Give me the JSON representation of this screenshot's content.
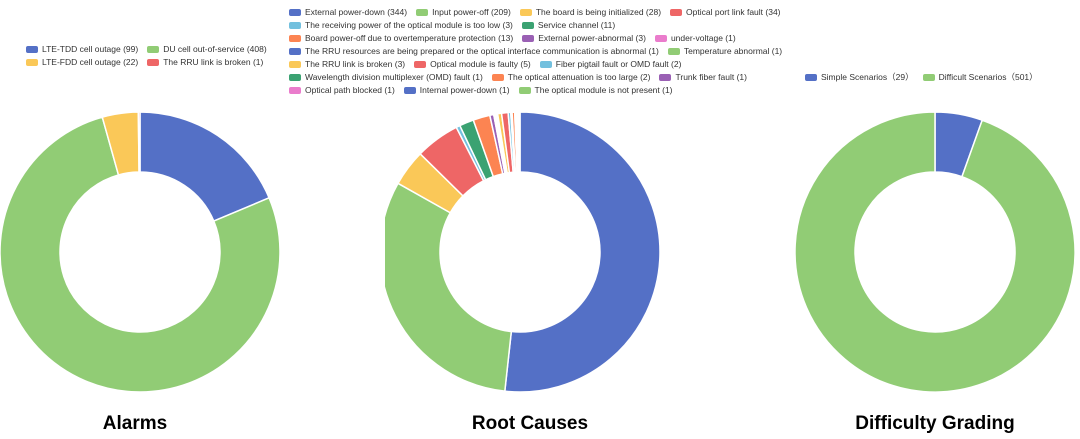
{
  "chart_data": [
    {
      "type": "pie",
      "title": "Alarms",
      "categories": [
        "LTE-TDD cell outage",
        "DU cell out-of-service",
        "LTE-FDD cell outage",
        "The RRU link is broken"
      ],
      "values": [
        99,
        408,
        22,
        1
      ],
      "legend_labels": [
        "LTE-TDD cell outage (99)",
        "DU cell out-of-service (408)",
        "LTE-FDD cell outage (22)",
        "The RRU link is broken (1)"
      ],
      "colors": [
        "#5470c6",
        "#91cc75",
        "#fac858",
        "#ee6666"
      ],
      "legend_rows": [
        [
          0,
          1
        ],
        [
          2,
          3
        ]
      ],
      "legend": "top"
    },
    {
      "type": "pie",
      "title": "Root Causes",
      "categories": [
        "External power-down",
        "Input power-off",
        "The board is being initialized",
        "Optical port link fault",
        "The receiving power of the optical module is too low",
        "Service channel",
        "Board power-off due to overtemperature protection",
        "External power-abnormal",
        "under-voltage",
        "The RRU resources are being prepared or the optical interface communication is abnormal",
        "Temperature abnormal",
        "The RRU link is broken",
        "Optical module is faulty",
        "Fiber pigtail fault or OMD fault",
        "Wavelength division multiplexer (OMD) fault",
        "The optical attenuation is too large",
        "Trunk fiber fault",
        "Optical path blocked",
        "Internal power-down",
        "The optical module is not present"
      ],
      "values": [
        344,
        209,
        28,
        34,
        3,
        11,
        13,
        3,
        1,
        1,
        1,
        3,
        5,
        2,
        1,
        2,
        1,
        1,
        1,
        1
      ],
      "legend_labels": [
        "External power-down (344)",
        "Input power-off (209)",
        "The board is being initialized (28)",
        "Optical port link fault (34)",
        "The receiving power of the optical module is too low (3)",
        "Service channel (11)",
        "Board power-off due to overtemperature protection (13)",
        "External power-abnormal (3)",
        "under-voltage (1)",
        "The RRU resources are being prepared or the optical interface communication is abnormal (1)",
        "Temperature abnormal (1)",
        "The RRU link is broken (3)",
        "Optical module is faulty (5)",
        "Fiber pigtail fault or OMD fault (2)",
        "Wavelength division multiplexer (OMD) fault (1)",
        "The optical attenuation is too large (2)",
        "Trunk fiber fault (1)",
        "Optical path blocked (1)",
        "Internal power-down (1)",
        "The optical module is not present (1)"
      ],
      "colors": [
        "#5470c6",
        "#91cc75",
        "#fac858",
        "#ee6666",
        "#73c0de",
        "#3ba272",
        "#fc8452",
        "#9a60b4",
        "#ea7ccc",
        "#5470c6",
        "#91cc75",
        "#fac858",
        "#ee6666",
        "#73c0de",
        "#3ba272",
        "#fc8452",
        "#9a60b4",
        "#ea7ccc",
        "#5470c6",
        "#91cc75"
      ],
      "legend_rows": [
        [
          0,
          1,
          2,
          3
        ],
        [
          4,
          5
        ],
        [
          6,
          7,
          8
        ],
        [
          9,
          10
        ],
        [
          11,
          12,
          13
        ],
        [
          14,
          15,
          16
        ],
        [
          17,
          18,
          19
        ]
      ],
      "legend": "top"
    },
    {
      "type": "pie",
      "title": "Difficulty Grading",
      "categories": [
        "Simple Scenarios",
        "Difficult Scenarios"
      ],
      "values": [
        29,
        501
      ],
      "legend_labels": [
        "Simple Scenarios（29）",
        "Difficult Scenarios（501）"
      ],
      "colors": [
        "#5470c6",
        "#91cc75"
      ],
      "legend_rows": [
        [
          0,
          1
        ]
      ],
      "legend": "top"
    }
  ]
}
